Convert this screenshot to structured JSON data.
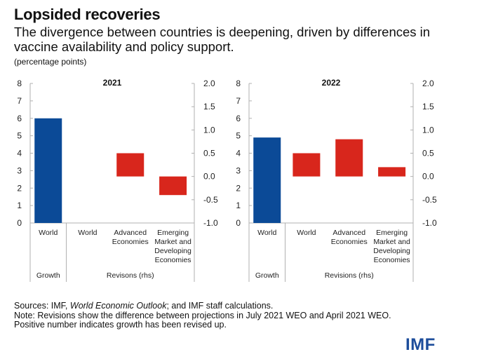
{
  "header": {
    "title": "Lopsided recoveries",
    "subtitle": "The divergence between countries is deepening, driven by differences in vaccine availability and policy support.",
    "units": "(percentage points)"
  },
  "footer": {
    "sources_prefix": "Sources: IMF, ",
    "sources_italic": "World Economic Outlook",
    "sources_suffix": "; and IMF staff calculations.",
    "note": "Note: Revisions show the difference between projections in July 2021 WEO and April 2021 WEO.",
    "note2": "Positive number indicates growth has been revised up.",
    "logo": "IMF"
  },
  "colors": {
    "growth": "#0b4a97",
    "revision": "#d8261c",
    "axis": "#b0b0b0"
  },
  "chart_data": [
    {
      "type": "bar",
      "title": "2021",
      "categories": [
        "World",
        "World",
        "Advanced Economies",
        "Emerging Market and Developing Economies"
      ],
      "groups": [
        {
          "label": "Growth",
          "categories": [
            "World"
          ]
        },
        {
          "label": "Revisons (rhs)",
          "categories": [
            "World",
            "Advanced Economies",
            "Emerging Market and Developing Economies"
          ]
        }
      ],
      "series": [
        {
          "name": "Growth",
          "axis": "left",
          "values": [
            6.0,
            null,
            null,
            null
          ]
        },
        {
          "name": "Revisions",
          "axis": "right",
          "values": [
            null,
            0.0,
            0.5,
            -0.4
          ]
        }
      ],
      "left_axis": {
        "ylim": [
          0,
          8
        ],
        "ticks": [
          "0",
          "1",
          "2",
          "3",
          "4",
          "5",
          "6",
          "7",
          "8"
        ]
      },
      "right_axis": {
        "ylim": [
          -1.0,
          2.0
        ],
        "ticks": [
          "-1.0",
          "-0.5",
          "0.0",
          "0.5",
          "1.0",
          "1.5",
          "2.0"
        ]
      },
      "grid": false
    },
    {
      "type": "bar",
      "title": "2022",
      "categories": [
        "World",
        "World",
        "Advanced Economies",
        "Emerging Market and Developing Economies"
      ],
      "groups": [
        {
          "label": "Growth",
          "categories": [
            "World"
          ]
        },
        {
          "label": "Revisions (rhs)",
          "categories": [
            "World",
            "Advanced Economies",
            "Emerging Market and Developing Economies"
          ]
        }
      ],
      "series": [
        {
          "name": "Growth",
          "axis": "left",
          "values": [
            4.9,
            null,
            null,
            null
          ]
        },
        {
          "name": "Revisions",
          "axis": "right",
          "values": [
            null,
            0.5,
            0.8,
            0.2
          ]
        }
      ],
      "left_axis": {
        "ylim": [
          0,
          8
        ],
        "ticks": [
          "0",
          "1",
          "2",
          "3",
          "4",
          "5",
          "6",
          "7",
          "8"
        ]
      },
      "right_axis": {
        "ylim": [
          -1.0,
          2.0
        ],
        "ticks": [
          "-1.0",
          "-0.5",
          "0.0",
          "0.5",
          "1.0",
          "1.5",
          "2.0"
        ]
      },
      "grid": false
    }
  ]
}
